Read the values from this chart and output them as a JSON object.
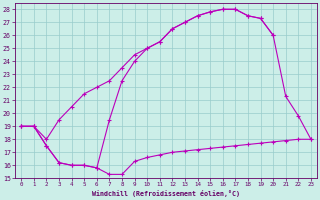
{
  "bg_color": "#cceee8",
  "line_color": "#bb00bb",
  "grid_color": "#99cccc",
  "text_color": "#660066",
  "xlabel": "Windchill (Refroidissement éolien,°C)",
  "xlim": [
    -0.5,
    23.5
  ],
  "ylim": [
    15,
    28.5
  ],
  "yticks": [
    15,
    16,
    17,
    18,
    19,
    20,
    21,
    22,
    23,
    24,
    25,
    26,
    27,
    28
  ],
  "xticks": [
    0,
    1,
    2,
    3,
    4,
    5,
    6,
    7,
    8,
    9,
    10,
    11,
    12,
    13,
    14,
    15,
    16,
    17,
    18,
    19,
    20,
    21,
    22,
    23
  ],
  "line1_x": [
    0,
    1,
    2,
    3,
    4,
    5,
    6,
    7,
    8,
    9,
    10,
    11,
    12,
    13,
    14,
    15,
    16,
    17,
    18,
    19,
    20,
    21,
    22,
    23
  ],
  "line1_y": [
    19,
    19,
    17.5,
    16.2,
    16.0,
    16.0,
    15.8,
    15.3,
    15.3,
    16.3,
    16.6,
    16.8,
    17.0,
    17.1,
    17.2,
    17.3,
    17.4,
    17.5,
    17.6,
    17.7,
    17.8,
    17.9,
    18.0,
    18.0
  ],
  "line2_x": [
    0,
    1,
    2,
    3,
    4,
    5,
    6,
    7,
    8,
    9,
    10,
    11,
    12,
    13,
    14,
    15,
    16,
    17,
    18,
    19,
    20,
    21,
    22,
    23
  ],
  "line2_y": [
    19,
    19,
    18.0,
    19.5,
    20.5,
    21.5,
    22.0,
    22.5,
    23.5,
    24.5,
    25.0,
    25.5,
    26.5,
    27.0,
    27.5,
    27.8,
    28.0,
    28.0,
    27.5,
    27.3,
    26.0,
    21.3,
    19.8,
    18.0
  ],
  "line3_x": [
    0,
    1,
    2,
    3,
    4,
    5,
    6,
    7,
    8,
    9,
    10,
    11,
    12,
    13,
    14,
    15,
    16,
    17,
    18,
    19,
    20
  ],
  "line3_y": [
    19,
    19,
    17.5,
    16.2,
    16.0,
    16.0,
    15.8,
    19.5,
    22.5,
    24.0,
    25.0,
    25.5,
    26.5,
    27.0,
    27.5,
    27.8,
    28.0,
    28.0,
    27.5,
    27.3,
    26.0
  ]
}
